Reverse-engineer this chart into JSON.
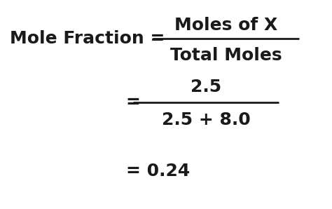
{
  "bg_color": "#ffffff",
  "text_color": "#1a1a1a",
  "line1_left": "Mole Fraction = ",
  "line1_numerator": "Moles of X",
  "line1_denominator": "Total Moles",
  "line2_equals": "=",
  "line2_numerator": "2.5",
  "line2_denominator": "2.5 + 8.0",
  "line3_result": "= 0.24",
  "fontsize": 18,
  "figsize": [
    4.74,
    2.98
  ],
  "dpi": 100
}
